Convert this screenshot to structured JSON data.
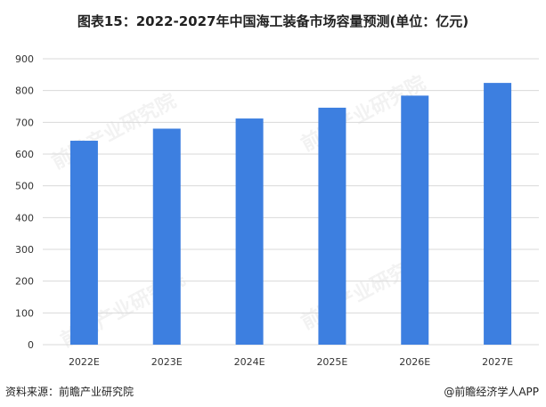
{
  "header": {
    "title": "图表15：2022-2027年中国海工装备市场容量预测(单位：亿元)"
  },
  "chart_data": {
    "type": "bar",
    "categories": [
      "2022E",
      "2023E",
      "2024E",
      "2025E",
      "2026E",
      "2027E"
    ],
    "values": [
      642,
      680,
      712,
      746,
      784,
      824
    ],
    "title": "图表15：2022-2027年中国海工装备市场容量预测(单位：亿元)",
    "xlabel": "",
    "ylabel": "",
    "ylim": [
      0,
      900
    ],
    "yticks": [
      0,
      100,
      200,
      300,
      400,
      500,
      600,
      700,
      800,
      900
    ],
    "grid": true,
    "bar_color": "#3d7fe0",
    "grid_color": "#d9d9d9"
  },
  "watermark": {
    "text": "前瞻产业研究院"
  },
  "footer": {
    "source": "资料来源：前瞻产业研究院",
    "credit": "@前瞻经济学人APP"
  }
}
